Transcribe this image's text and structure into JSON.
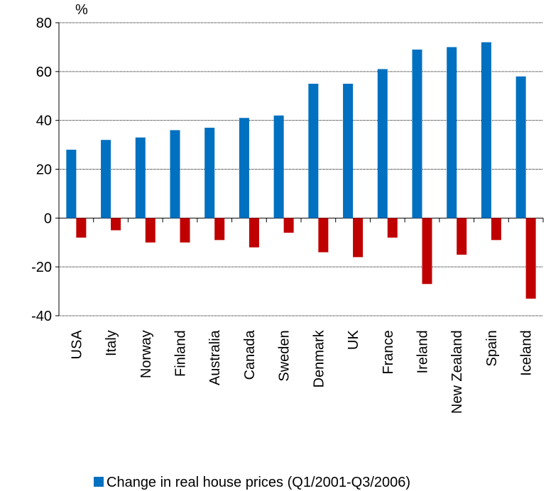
{
  "chart_data": {
    "type": "bar",
    "y_label": "%",
    "categories": [
      "USA",
      "Italy",
      "Norway",
      "Finland",
      "Australia",
      "Canada",
      "Sweden",
      "Denmark",
      "UK",
      "France",
      "Ireland",
      "New Zealand",
      "Spain",
      "Iceland"
    ],
    "series": [
      {
        "name": "Change in real house prices (Q1/2001-Q3/2006)",
        "color": "#0070c0",
        "values": [
          28,
          32,
          33,
          36,
          37,
          41,
          42,
          55,
          55,
          61,
          69,
          70,
          72,
          58
        ]
      },
      {
        "color": "#c00000",
        "values": [
          -8,
          -5,
          -10,
          -10,
          -9,
          -12,
          -6,
          -14,
          -16,
          -8,
          -27,
          -15,
          -9,
          -33
        ]
      }
    ],
    "ylim": [
      -40,
      80
    ],
    "yticks": [
      -40,
      -20,
      0,
      20,
      40,
      60,
      80
    ],
    "grid": true
  }
}
